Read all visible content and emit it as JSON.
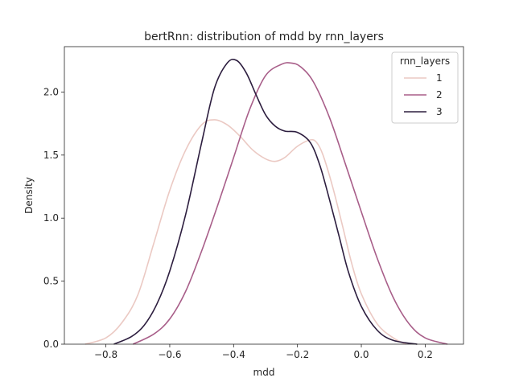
{
  "chart_data": {
    "type": "line",
    "title": "bertRnn: distribution of mdd by rnn_layers",
    "xlabel": "mdd",
    "ylabel": "Density",
    "xlim": [
      -0.93,
      0.32
    ],
    "ylim": [
      0,
      2.36
    ],
    "xticks": [
      -0.8,
      -0.6,
      -0.4,
      -0.2,
      0.0,
      0.2
    ],
    "xtick_labels": [
      "−0.8",
      "−0.6",
      "−0.4",
      "−0.2",
      "0.0",
      "0.2"
    ],
    "yticks": [
      0.0,
      0.5,
      1.0,
      1.5,
      2.0
    ],
    "ytick_labels": [
      "0.0",
      "0.5",
      "1.0",
      "1.5",
      "2.0"
    ],
    "grid": false,
    "legend": {
      "title": "rnn_layers",
      "placement": "top-right"
    },
    "series": [
      {
        "name": "1",
        "color": "#ebc9c3",
        "x": [
          -0.865,
          -0.8,
          -0.75,
          -0.7,
          -0.65,
          -0.6,
          -0.55,
          -0.5,
          -0.46,
          -0.42,
          -0.38,
          -0.34,
          -0.3,
          -0.27,
          -0.24,
          -0.2,
          -0.16,
          -0.14,
          -0.12,
          -0.09,
          -0.06,
          -0.03,
          0.0,
          0.05,
          0.1,
          0.14
        ],
        "y": [
          0.0,
          0.05,
          0.17,
          0.39,
          0.8,
          1.22,
          1.54,
          1.74,
          1.78,
          1.74,
          1.65,
          1.54,
          1.47,
          1.45,
          1.48,
          1.57,
          1.62,
          1.6,
          1.5,
          1.25,
          0.95,
          0.64,
          0.4,
          0.16,
          0.05,
          0.0
        ]
      },
      {
        "name": "2",
        "color": "#a85e89",
        "x": [
          -0.715,
          -0.65,
          -0.6,
          -0.55,
          -0.5,
          -0.45,
          -0.4,
          -0.35,
          -0.3,
          -0.25,
          -0.22,
          -0.19,
          -0.15,
          -0.1,
          -0.05,
          0.0,
          0.05,
          0.1,
          0.15,
          0.2,
          0.27
        ],
        "y": [
          0.0,
          0.08,
          0.2,
          0.42,
          0.74,
          1.1,
          1.48,
          1.86,
          2.13,
          2.22,
          2.23,
          2.2,
          2.08,
          1.8,
          1.43,
          1.05,
          0.68,
          0.37,
          0.16,
          0.05,
          0.0
        ]
      },
      {
        "name": "3",
        "color": "#2d1e3f",
        "x": [
          -0.775,
          -0.72,
          -0.68,
          -0.64,
          -0.6,
          -0.55,
          -0.5,
          -0.46,
          -0.42,
          -0.39,
          -0.36,
          -0.33,
          -0.3,
          -0.27,
          -0.24,
          -0.2,
          -0.16,
          -0.13,
          -0.1,
          -0.07,
          -0.04,
          0.0,
          0.05,
          0.1,
          0.175
        ],
        "y": [
          0.0,
          0.06,
          0.15,
          0.32,
          0.58,
          1.03,
          1.6,
          2.03,
          2.23,
          2.25,
          2.15,
          1.98,
          1.82,
          1.73,
          1.69,
          1.68,
          1.6,
          1.42,
          1.15,
          0.86,
          0.57,
          0.3,
          0.11,
          0.03,
          0.0
        ]
      }
    ]
  }
}
